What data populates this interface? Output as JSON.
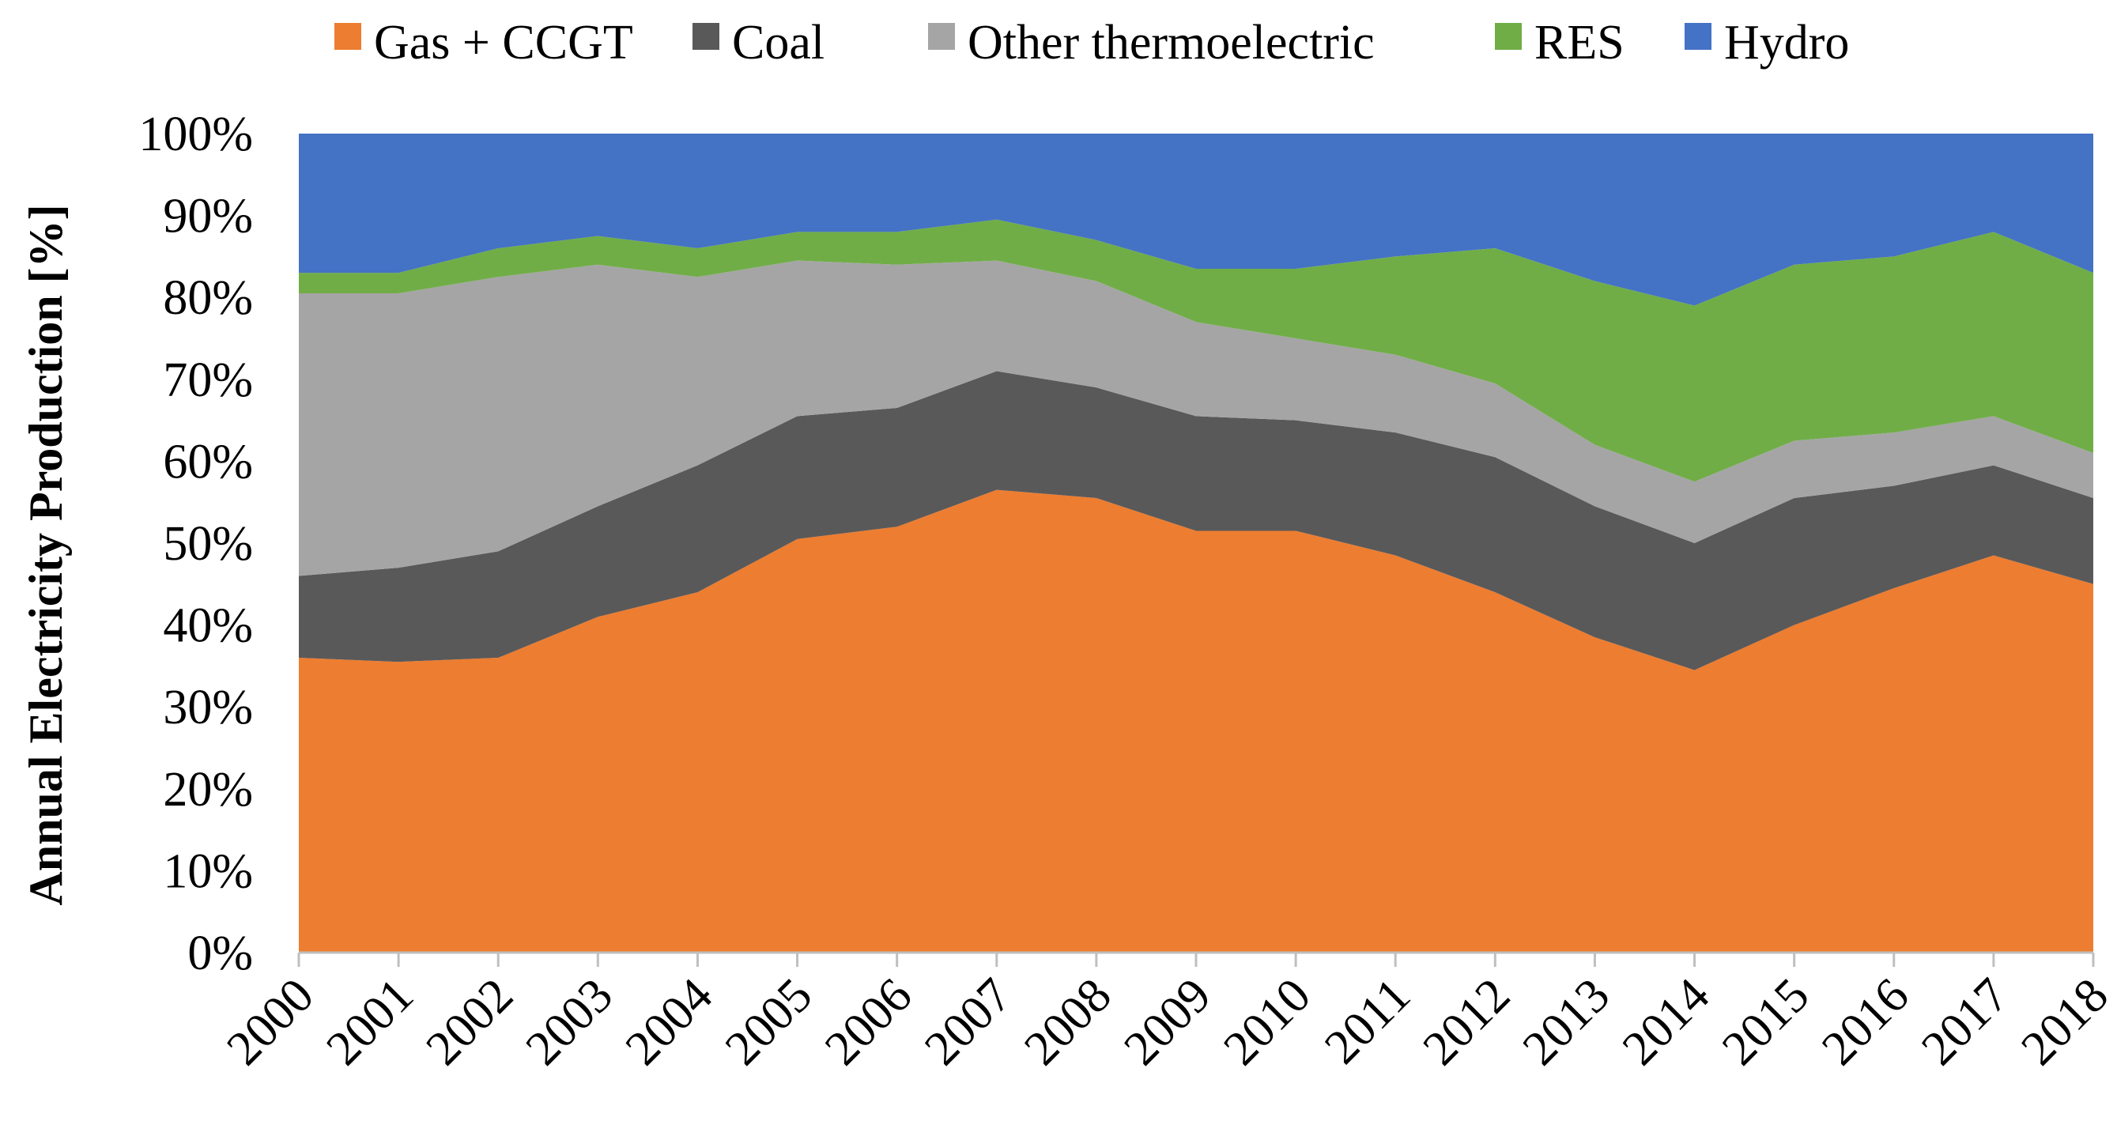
{
  "chart_data": {
    "type": "area",
    "stacked": true,
    "percent": true,
    "title": "",
    "xlabel": "",
    "ylabel": "Annual Electricity Production [%]",
    "ylim": [
      0,
      100
    ],
    "y_ticks": [
      "0%",
      "10%",
      "20%",
      "30%",
      "40%",
      "50%",
      "60%",
      "70%",
      "80%",
      "90%",
      "100%"
    ],
    "x": [
      "2000",
      "2001",
      "2002",
      "2003",
      "2004",
      "2005",
      "2006",
      "2007",
      "2008",
      "2009",
      "2010",
      "2011",
      "2012",
      "2013",
      "2014",
      "2015",
      "2016",
      "2017",
      "2018"
    ],
    "legend_position": "top",
    "grid": false,
    "series": [
      {
        "name": "Gas + CCGT",
        "color": "#ED7D31",
        "values": [
          36,
          35.5,
          36,
          41,
          44,
          50.5,
          52,
          56.5,
          55.5,
          51.5,
          51.5,
          48.5,
          44,
          38.5,
          34.5,
          40,
          44.5,
          48.5,
          45
        ]
      },
      {
        "name": "Coal",
        "color": "#595959",
        "values": [
          10,
          11.5,
          13,
          13.5,
          15.5,
          15,
          14.5,
          14.5,
          13.5,
          14,
          13.5,
          15,
          16.5,
          16,
          15.5,
          15.5,
          12.5,
          11,
          10.5
        ]
      },
      {
        "name": "Other thermoelectric",
        "color": "#A5A5A5",
        "values": [
          34.5,
          33.5,
          33.5,
          29.5,
          23,
          19,
          17.5,
          13.5,
          13,
          11.5,
          10,
          9.5,
          9,
          7.5,
          7.5,
          7,
          6.5,
          6,
          5.5
        ]
      },
      {
        "name": "RES",
        "color": "#70AD47",
        "values": [
          2.5,
          2.5,
          3.5,
          3.5,
          3.5,
          3.5,
          4,
          5,
          5,
          6.5,
          8.5,
          12,
          16.5,
          20,
          21.5,
          21.5,
          21.5,
          22.5,
          22
        ]
      },
      {
        "name": "Hydro",
        "color": "#4472C4",
        "values": [
          17,
          17,
          14,
          12.5,
          14,
          12,
          12,
          10.5,
          13,
          16.5,
          16.5,
          15,
          14,
          18,
          21,
          16,
          15,
          12,
          17
        ]
      }
    ]
  }
}
